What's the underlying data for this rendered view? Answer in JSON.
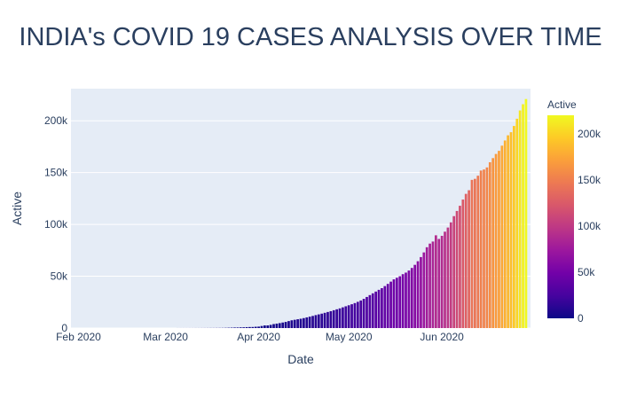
{
  "chart_data": {
    "type": "bar",
    "title": "INDIA's COVID 19 CASES ANALYSIS OVER TIME",
    "xlabel": "Date",
    "ylabel": "Active",
    "x_tick_labels": [
      "Feb 2020",
      "Mar 2020",
      "Apr 2020",
      "May 2020",
      "Jun 2020"
    ],
    "y_tick_labels": [
      "0",
      "50k",
      "100k",
      "150k",
      "200k"
    ],
    "y_ticks": [
      0,
      50000,
      100000,
      150000,
      200000
    ],
    "ylim": [
      0,
      231000
    ],
    "x_start": "2020-01-30",
    "x_end": "2020-06-30",
    "colorbar": {
      "title": "Active",
      "tick_labels": [
        "0",
        "50k",
        "100k",
        "150k",
        "200k"
      ],
      "ticks": [
        0,
        50000,
        100000,
        150000,
        200000
      ],
      "range": [
        0,
        220000
      ],
      "colors": [
        "#0d0887",
        "#46039f",
        "#7201a8",
        "#9c179e",
        "#bd3786",
        "#d8576b",
        "#ed7953",
        "#fb9f3a",
        "#fdca26",
        "#f0f921"
      ]
    },
    "series": [
      {
        "name": "Active",
        "start_date": "2020-01-30",
        "values": [
          1,
          1,
          2,
          3,
          3,
          3,
          3,
          3,
          3,
          3,
          3,
          3,
          3,
          3,
          3,
          3,
          3,
          3,
          3,
          3,
          3,
          3,
          3,
          3,
          3,
          3,
          3,
          3,
          3,
          3,
          3,
          3,
          3,
          3,
          3,
          28,
          30,
          31,
          34,
          39,
          43,
          56,
          62,
          73,
          82,
          102,
          113,
          119,
          142,
          156,
          194,
          244,
          330,
          396,
          499,
          536,
          657,
          727,
          887,
          987,
          1024,
          1251,
          1397,
          1998,
          2543,
          2567,
          3082,
          3851,
          4288,
          4778,
          5351,
          5916,
          6729,
          7500,
          8000,
          8500,
          9000,
          9600,
          10300,
          11000,
          11700,
          12500,
          13200,
          13900,
          14700,
          15500,
          16300,
          17200,
          18100,
          19000,
          20000,
          21000,
          22000,
          23000,
          24100,
          25300,
          26600,
          28200,
          30000,
          31800,
          33500,
          35200,
          36900,
          38500,
          40500,
          42600,
          44800,
          47000,
          48500,
          50000,
          52000,
          53500,
          55500,
          58000,
          61000,
          64500,
          68500,
          73000,
          78000,
          81500,
          83500,
          89500,
          86000,
          89000,
          93000,
          97000,
          102000,
          108000,
          113000,
          118000,
          124000,
          129500,
          133000,
          143000,
          144000,
          147000,
          152000,
          153000,
          155000,
          160000,
          164000,
          168000,
          171000,
          176000,
          181000,
          186000,
          189000,
          195000,
          202000,
          210000,
          216000,
          221000
        ]
      }
    ]
  }
}
